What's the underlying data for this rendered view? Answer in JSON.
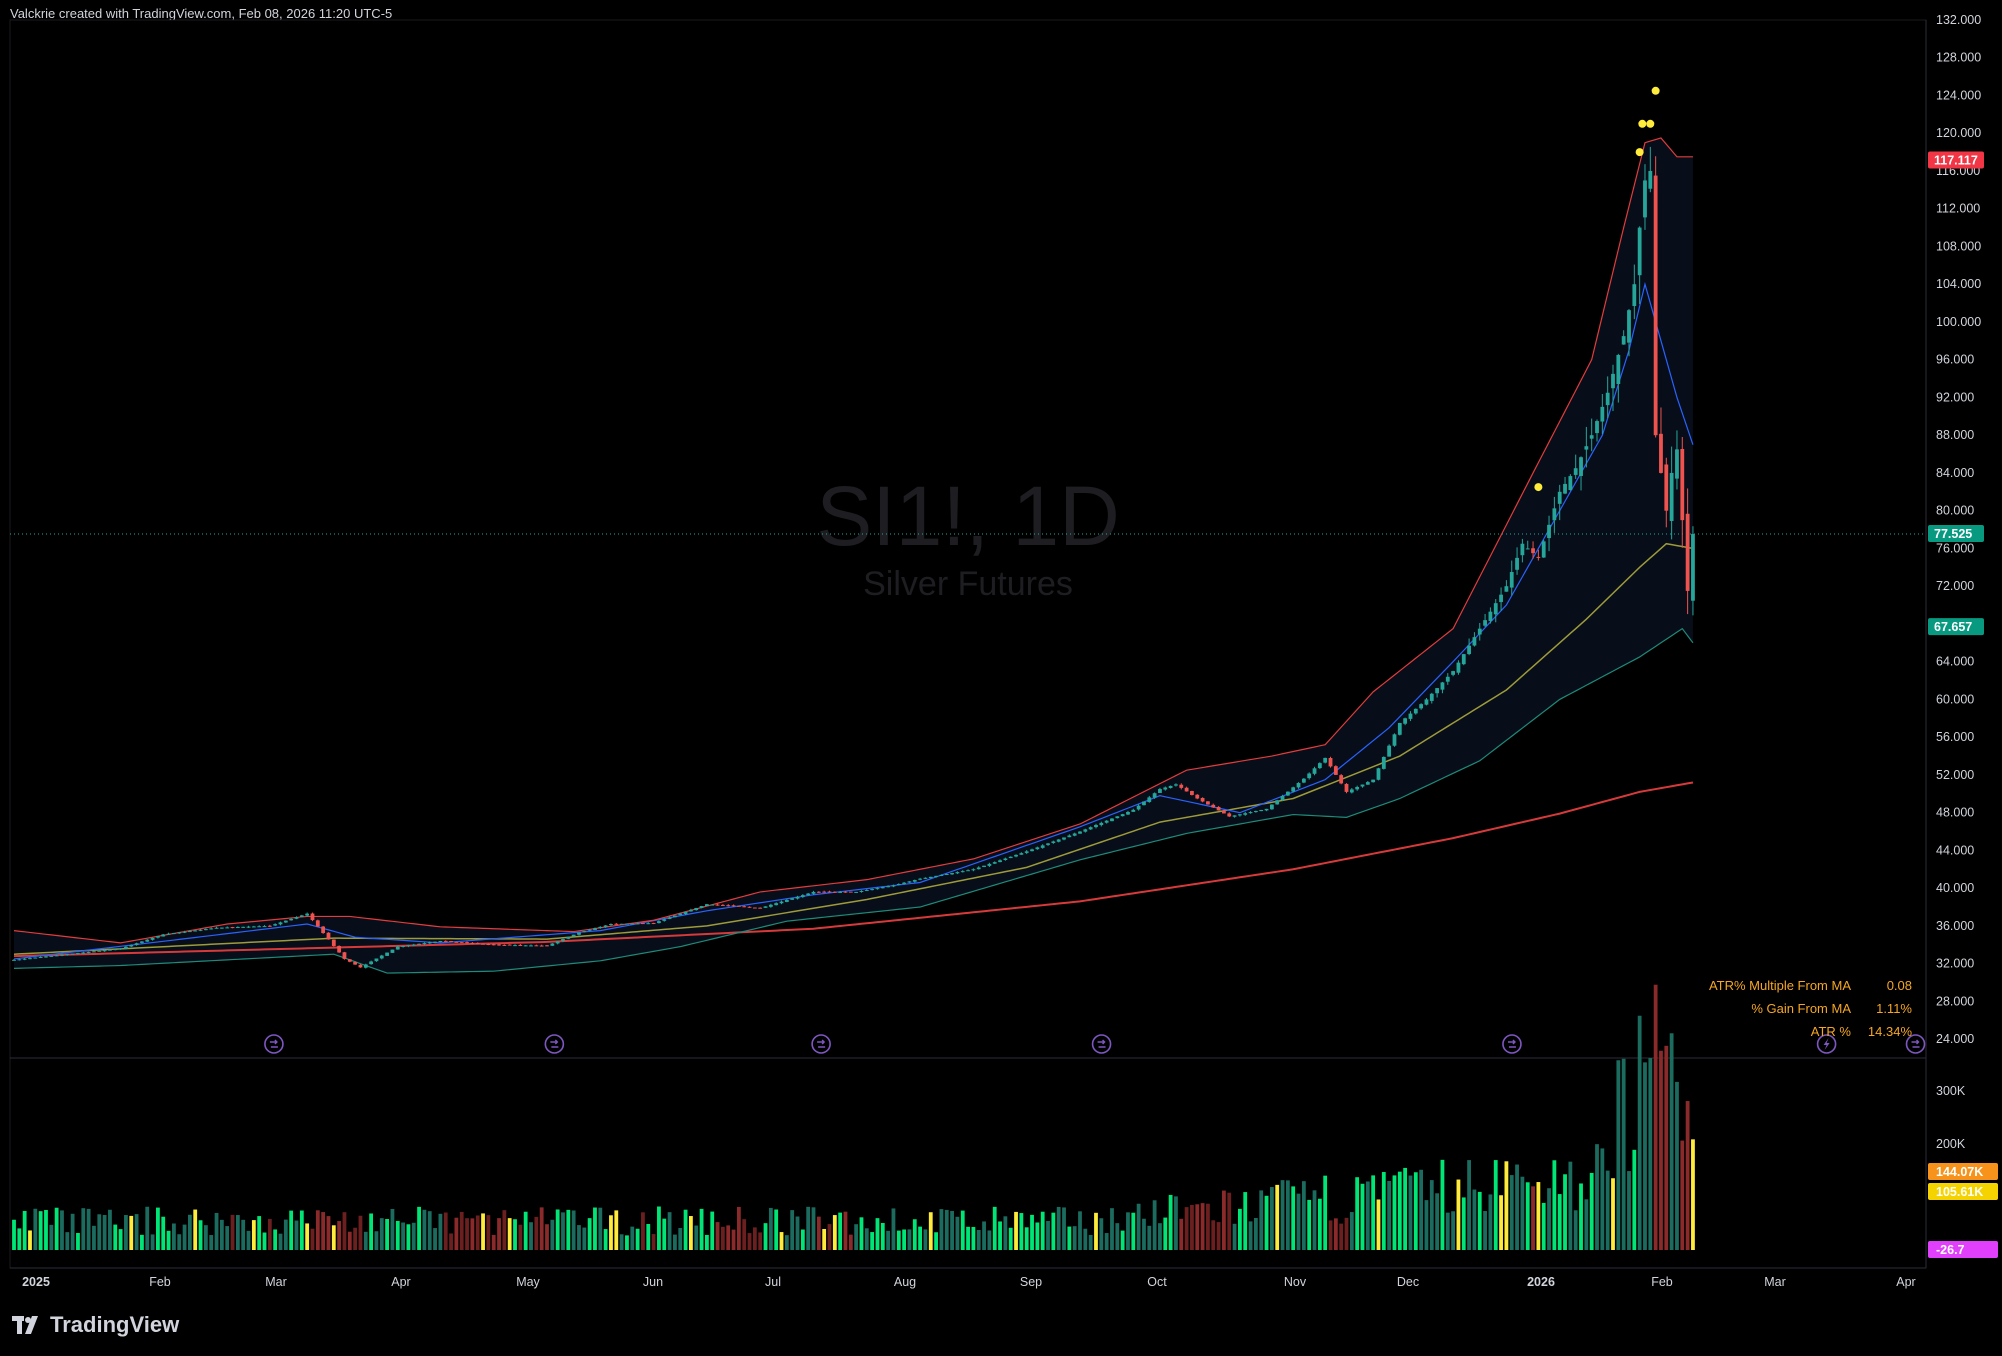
{
  "header": {
    "text": "Valckrie created with TradingView.com, Feb 08, 2026 11:20 UTC-5"
  },
  "watermark": {
    "symbol": "SI1!, 1D",
    "name": "Silver Futures"
  },
  "footer": {
    "brand": "TradingView"
  },
  "colors": {
    "up": "#26a69a",
    "down": "#ef5350",
    "bg": "#000000",
    "upper_band": "#e23c3c",
    "ema_fast": "#2962ff",
    "ema_mid": "#9e9b3a",
    "lower_band": "#1f8a7a",
    "ma_long": "#d73a3a",
    "dot": "#ffeb3b",
    "stat_text": "#f5a623"
  },
  "chart_data": {
    "type": "candlestick",
    "symbol": "SI1!",
    "timeframe": "1D",
    "ylim": [
      22,
      132
    ],
    "y_ticks": [
      "132.000",
      "128.000",
      "124.000",
      "120.000",
      "116.000",
      "112.000",
      "108.000",
      "104.000",
      "100.000",
      "96.000",
      "92.000",
      "88.000",
      "84.000",
      "80.000",
      "76.000",
      "72.000",
      "68.000",
      "64.000",
      "60.000",
      "56.000",
      "52.000",
      "48.000",
      "44.000",
      "40.000",
      "36.000",
      "32.000",
      "28.000",
      "24.000"
    ],
    "x_labels": [
      "2025",
      "Feb",
      "Mar",
      "Apr",
      "May",
      "Jun",
      "Jul",
      "Aug",
      "Sep",
      "Oct",
      "Nov",
      "Dec",
      "2026",
      "Feb",
      "Mar",
      "Apr"
    ],
    "price_labels": [
      {
        "value": 117.117,
        "text": "117.117",
        "color": "#f23645"
      },
      {
        "value": 77.525,
        "text": "77.525",
        "color": "#089981"
      },
      {
        "value": 67.657,
        "text": "67.657",
        "color": "#089981"
      }
    ],
    "last_price": 77.525,
    "close_path": [
      [
        0,
        32.4
      ],
      [
        10,
        33.0
      ],
      [
        20,
        33.6
      ],
      [
        28,
        35.1
      ],
      [
        38,
        35.8
      ],
      [
        48,
        36.0
      ],
      [
        55,
        37.3
      ],
      [
        62,
        32.5
      ],
      [
        65,
        31.6
      ],
      [
        72,
        33.8
      ],
      [
        80,
        34.4
      ],
      [
        90,
        34.0
      ],
      [
        100,
        33.9
      ],
      [
        106,
        35.3
      ],
      [
        112,
        36.2
      ],
      [
        120,
        36.3
      ],
      [
        130,
        38.3
      ],
      [
        140,
        37.9
      ],
      [
        150,
        39.6
      ],
      [
        158,
        39.6
      ],
      [
        165,
        40.3
      ],
      [
        170,
        41.0
      ],
      [
        180,
        42.0
      ],
      [
        190,
        43.9
      ],
      [
        200,
        46.0
      ],
      [
        210,
        48.3
      ],
      [
        215,
        50.5
      ],
      [
        218,
        51.0
      ],
      [
        222,
        49.5
      ],
      [
        228,
        47.6
      ],
      [
        235,
        48.4
      ],
      [
        242,
        51.6
      ],
      [
        246,
        53.8
      ],
      [
        250,
        50.2
      ],
      [
        255,
        51.5
      ],
      [
        260,
        57.5
      ],
      [
        265,
        60.0
      ],
      [
        270,
        63.0
      ],
      [
        275,
        67.5
      ],
      [
        280,
        72.0
      ],
      [
        283,
        76.5
      ],
      [
        286,
        75.0
      ],
      [
        290,
        82.0
      ],
      [
        293,
        84.5
      ],
      [
        296,
        88.0
      ],
      [
        299,
        92.5
      ],
      [
        302,
        98.5
      ],
      [
        304,
        104.0
      ],
      [
        305,
        110.0
      ],
      [
        306,
        115.0
      ],
      [
        307,
        116.0
      ],
      [
        308,
        88.0
      ],
      [
        310,
        80.0
      ],
      [
        311,
        84.0
      ],
      [
        312,
        86.5
      ],
      [
        313,
        79.0
      ],
      [
        314,
        71.5
      ],
      [
        315,
        77.525
      ]
    ],
    "candles_count": 316,
    "overlays": {
      "upper_band": [
        [
          0,
          35.5
        ],
        [
          20,
          34.2
        ],
        [
          40,
          36.2
        ],
        [
          55,
          37.0
        ],
        [
          63,
          37.0
        ],
        [
          80,
          35.9
        ],
        [
          105,
          35.4
        ],
        [
          120,
          36.6
        ],
        [
          140,
          39.6
        ],
        [
          160,
          40.9
        ],
        [
          180,
          43.1
        ],
        [
          200,
          46.8
        ],
        [
          220,
          52.5
        ],
        [
          236,
          54.0
        ],
        [
          246,
          55.2
        ],
        [
          255,
          60.8
        ],
        [
          270,
          67.5
        ],
        [
          285,
          84.0
        ],
        [
          296,
          96.0
        ],
        [
          302,
          110.0
        ],
        [
          306,
          119.0
        ],
        [
          309,
          119.5
        ],
        [
          312,
          117.5
        ],
        [
          315,
          117.5
        ]
      ],
      "ema_fast": [
        [
          0,
          32.5
        ],
        [
          30,
          34.5
        ],
        [
          55,
          36.2
        ],
        [
          64,
          34.8
        ],
        [
          80,
          34.2
        ],
        [
          110,
          35.5
        ],
        [
          130,
          37.6
        ],
        [
          150,
          39.3
        ],
        [
          170,
          40.6
        ],
        [
          200,
          46.5
        ],
        [
          215,
          49.8
        ],
        [
          230,
          48.0
        ],
        [
          246,
          51.5
        ],
        [
          258,
          57.0
        ],
        [
          270,
          64.0
        ],
        [
          280,
          70.0
        ],
        [
          290,
          80.0
        ],
        [
          298,
          88.0
        ],
        [
          303,
          97.0
        ],
        [
          306,
          104.0
        ],
        [
          309,
          98.0
        ],
        [
          312,
          92.0
        ],
        [
          315,
          87.0
        ]
      ],
      "ema_mid": [
        [
          0,
          33.0
        ],
        [
          60,
          34.7
        ],
        [
          100,
          34.6
        ],
        [
          130,
          36.0
        ],
        [
          160,
          38.8
        ],
        [
          190,
          42.2
        ],
        [
          215,
          47.0
        ],
        [
          240,
          49.5
        ],
        [
          260,
          54.0
        ],
        [
          280,
          61.0
        ],
        [
          295,
          68.5
        ],
        [
          305,
          74.0
        ],
        [
          310,
          76.5
        ],
        [
          315,
          76.0
        ]
      ],
      "lower_band": [
        [
          0,
          31.5
        ],
        [
          20,
          31.8
        ],
        [
          40,
          32.4
        ],
        [
          60,
          33.0
        ],
        [
          70,
          31.0
        ],
        [
          90,
          31.2
        ],
        [
          110,
          32.3
        ],
        [
          125,
          33.8
        ],
        [
          145,
          36.5
        ],
        [
          170,
          38.0
        ],
        [
          200,
          43.0
        ],
        [
          220,
          45.8
        ],
        [
          240,
          47.8
        ],
        [
          250,
          47.5
        ],
        [
          260,
          49.5
        ],
        [
          275,
          53.5
        ],
        [
          290,
          60.0
        ],
        [
          305,
          64.5
        ],
        [
          313,
          67.5
        ],
        [
          315,
          66.0
        ]
      ],
      "ma_long": [
        [
          0,
          32.8
        ],
        [
          60,
          33.7
        ],
        [
          100,
          34.3
        ],
        [
          150,
          35.7
        ],
        [
          200,
          38.6
        ],
        [
          240,
          42.0
        ],
        [
          270,
          45.3
        ],
        [
          290,
          47.9
        ],
        [
          305,
          50.2
        ],
        [
          315,
          51.2
        ]
      ]
    },
    "top_dots": [
      [
        286,
        82.5
      ],
      [
        305,
        118.0
      ],
      [
        305.5,
        121.0
      ],
      [
        307,
        121.0
      ],
      [
        308,
        124.5
      ]
    ],
    "event_markers": [
      {
        "x": 38,
        "kind": "dividend"
      },
      {
        "x": 79,
        "kind": "dividend"
      },
      {
        "x": 118,
        "kind": "dividend"
      },
      {
        "x": 159,
        "kind": "dividend"
      },
      {
        "x": 219,
        "kind": "dividend"
      },
      {
        "x": 265,
        "kind": "lightning"
      },
      {
        "x": 278,
        "kind": "dividend"
      }
    ],
    "stats": [
      {
        "label": "ATR% Multiple From MA",
        "value": "0.08"
      },
      {
        "label": "% Gain From MA",
        "value": "1.11%"
      },
      {
        "label": "ATR %",
        "value": "14.34%"
      }
    ],
    "volume": {
      "ylim": [
        0,
        340000
      ],
      "y_ticks": [
        "300K",
        "200K"
      ],
      "labels": [
        {
          "text": "144.07K",
          "color": "#f7931a"
        },
        {
          "text": "105.61K",
          "color": "#f5d300"
        },
        {
          "text": "-26.7",
          "color": "#e040fb"
        }
      ]
    }
  }
}
